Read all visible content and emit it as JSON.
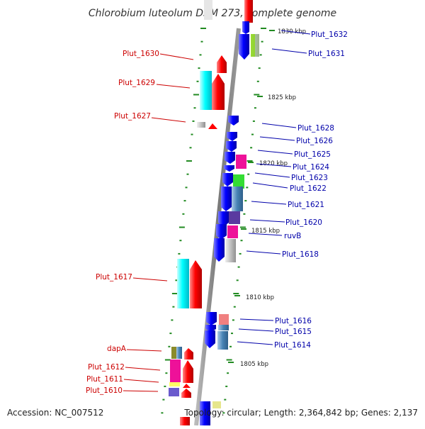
{
  "title": "Chlorobium luteolum DSM 273, complete genome",
  "footer": {
    "accession": "Accession: NC_007512",
    "summary": "Topology: circular; Length: 2,364,842 bp; Genes: 2,137"
  },
  "scale_labels": [
    "1830 kbp",
    "1825 kbp",
    "1820 kbp",
    "1815 kbp",
    "1810 kbp",
    "1805 kbp"
  ],
  "genes_left": [
    "Plut_1630",
    "Plut_1629",
    "Plut_1627",
    "Plut_1617",
    "dapA",
    "Plut_1612",
    "Plut_1611",
    "Plut_1610"
  ],
  "genes_right": [
    "Plut_1632",
    "Plut_1631",
    "Plut_1628",
    "Plut_1626",
    "Plut_1625",
    "Plut_1624",
    "Plut_1623",
    "Plut_1622",
    "Plut_1621",
    "Plut_1620",
    "ruvB",
    "Plut_1618",
    "Plut_1616",
    "Plut_1615",
    "Plut_1614"
  ],
  "colors": {
    "forward_strand": "#ff0000",
    "reverse_strand": "#0000ff",
    "backbone": "#888888",
    "tick": "#228B22",
    "left_label": "#cc0000",
    "right_label": "#0000aa"
  }
}
